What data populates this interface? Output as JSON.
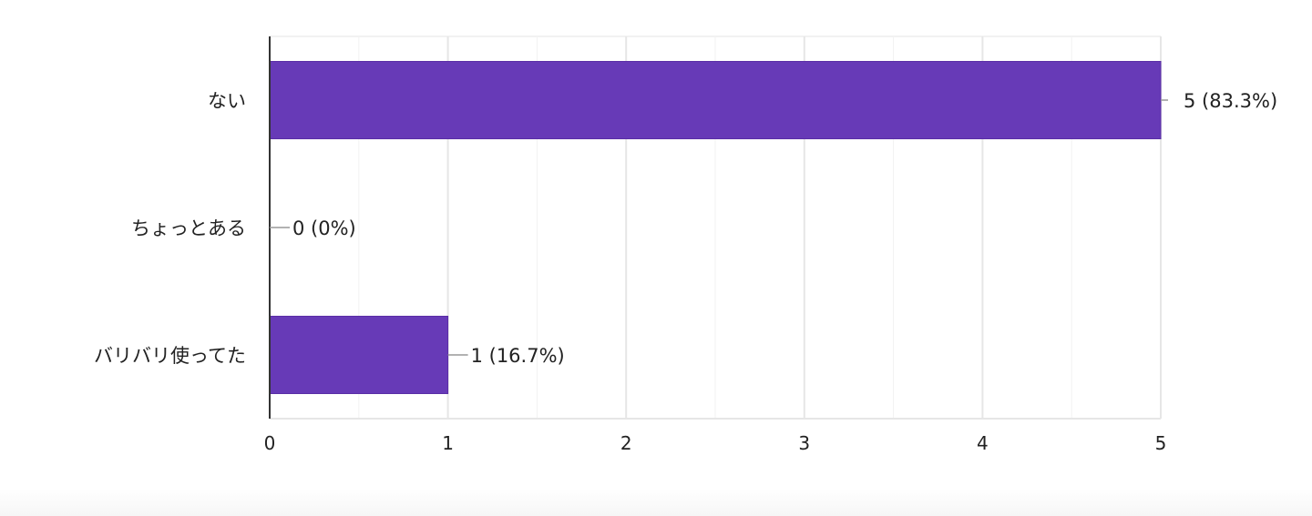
{
  "chart_data": {
    "type": "bar",
    "orientation": "horizontal",
    "categories": [
      "ない",
      "ちょっとある",
      "バリバリ使ってた"
    ],
    "values": [
      5,
      0,
      1
    ],
    "data_labels": [
      "5 (83.3%)",
      "0 (0%)",
      "1 (16.7%)"
    ],
    "xlim": [
      0,
      5
    ],
    "x_ticks": [
      0,
      1,
      2,
      3,
      4,
      5
    ],
    "x_tick_labels": [
      "0",
      "1",
      "2",
      "3",
      "4",
      "5"
    ],
    "minor_gridlines": true,
    "bar_color": "#673ab7",
    "bar_border_color": "#5a2ea6",
    "grid_color": "#e6e6e6",
    "axis_color": "#333333",
    "leader_line_color": "#999999",
    "title": "",
    "xlabel": "",
    "ylabel": ""
  }
}
